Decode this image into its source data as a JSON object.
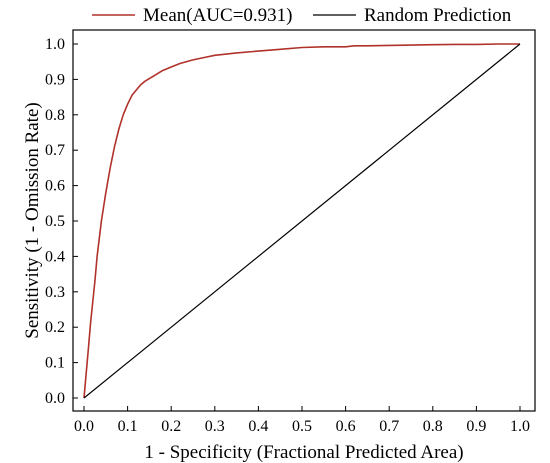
{
  "chart_data": {
    "type": "line",
    "xlabel": "1 - Specificity (Fractional Predicted Area)",
    "ylabel": "Sensitivity (1 - Omission Rate)",
    "xlim": [
      0.0,
      1.0
    ],
    "ylim": [
      0.0,
      1.0
    ],
    "x_ticks": [
      "0.0",
      "0.1",
      "0.2",
      "0.3",
      "0.4",
      "0.5",
      "0.6",
      "0.7",
      "0.8",
      "0.9",
      "1.0"
    ],
    "y_ticks": [
      "0.0",
      "0.1",
      "0.2",
      "0.3",
      "0.4",
      "0.5",
      "0.6",
      "0.7",
      "0.8",
      "0.9",
      "1.0"
    ],
    "grid": false,
    "legend_position": "top",
    "series": [
      {
        "name": "Mean(AUC=0.931)",
        "color": "#b0322a",
        "x": [
          0.0,
          0.005,
          0.01,
          0.015,
          0.02,
          0.025,
          0.03,
          0.04,
          0.05,
          0.06,
          0.07,
          0.08,
          0.09,
          0.1,
          0.11,
          0.12,
          0.13,
          0.14,
          0.16,
          0.18,
          0.2,
          0.22,
          0.25,
          0.28,
          0.3,
          0.35,
          0.4,
          0.45,
          0.5,
          0.55,
          0.6,
          0.62,
          0.65,
          0.7,
          0.75,
          0.8,
          0.85,
          0.9,
          0.95,
          1.0
        ],
        "y": [
          0.0,
          0.07,
          0.14,
          0.21,
          0.27,
          0.33,
          0.4,
          0.5,
          0.58,
          0.65,
          0.71,
          0.76,
          0.8,
          0.83,
          0.855,
          0.87,
          0.885,
          0.895,
          0.91,
          0.925,
          0.935,
          0.945,
          0.955,
          0.963,
          0.968,
          0.975,
          0.98,
          0.985,
          0.99,
          0.992,
          0.992,
          0.995,
          0.995,
          0.996,
          0.997,
          0.998,
          0.999,
          0.999,
          1.0,
          1.0
        ]
      },
      {
        "name": "Random Prediction",
        "color": "#000000",
        "x": [
          0.0,
          1.0
        ],
        "y": [
          0.0,
          1.0
        ]
      }
    ]
  }
}
